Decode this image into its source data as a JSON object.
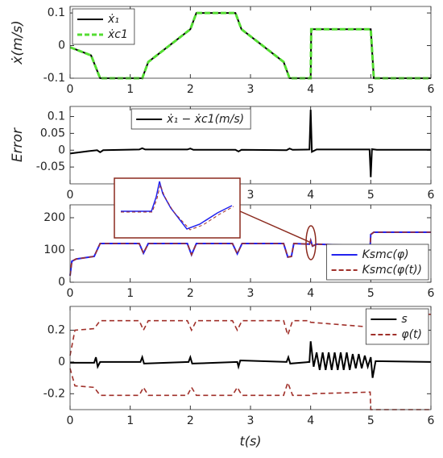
{
  "chart_data": [
    {
      "type": "line",
      "ylabel": "ẋ(m/s)",
      "legend": "upper left",
      "x": [
        0,
        0.35,
        0.5,
        1.2,
        1.3,
        2.0,
        2.1,
        2.75,
        2.85,
        3.55,
        3.65,
        4.0,
        4.01,
        5.0,
        5.05,
        6
      ],
      "series": [
        {
          "name": "ẋ₁",
          "color": "#000000",
          "dash": false,
          "values": [
            -0.005,
            -0.03,
            -0.1,
            -0.1,
            -0.05,
            0.05,
            0.1,
            0.1,
            0.05,
            -0.05,
            -0.1,
            -0.1,
            0.05,
            0.05,
            -0.1,
            -0.1
          ]
        },
        {
          "name": "ẋc1",
          "color": "#55dd33",
          "dash": true,
          "values": [
            -0.005,
            -0.03,
            -0.1,
            -0.1,
            -0.05,
            0.05,
            0.1,
            0.1,
            0.05,
            -0.05,
            -0.1,
            -0.1,
            0.05,
            0.05,
            -0.1,
            -0.1
          ]
        }
      ],
      "xlim": [
        0,
        6
      ],
      "xticks": [
        0,
        1,
        2,
        3,
        4,
        5,
        6
      ],
      "ylim": [
        -0.1,
        0.12
      ],
      "yticks": [
        -0.1,
        0,
        0.1
      ]
    },
    {
      "type": "line",
      "ylabel": "Error",
      "legend": "upper center",
      "x": [
        0,
        0.3,
        0.45,
        0.5,
        0.55,
        1.15,
        1.2,
        1.25,
        1.95,
        2.0,
        2.05,
        2.75,
        2.8,
        2.85,
        3.6,
        3.65,
        3.7,
        3.98,
        4.0,
        4.02,
        4.1,
        4.98,
        5.0,
        5.02,
        5.1,
        6
      ],
      "series": [
        {
          "name": "ẋ₁ − ẋc1(m/s)",
          "color": "#000000",
          "dash": false,
          "values": [
            -0.01,
            -0.003,
            0,
            -0.006,
            0,
            0.002,
            0.006,
            0.002,
            0.002,
            0.005,
            0.001,
            0.001,
            -0.004,
            0.001,
            0,
            0.005,
            0.001,
            0.002,
            0.12,
            -0.005,
            0.002,
            0.002,
            -0.08,
            0.003,
            0.001,
            0.001
          ]
        }
      ],
      "xlim": [
        0,
        6
      ],
      "xticks": [
        0,
        1,
        2,
        3,
        4,
        5,
        6
      ],
      "ylim": [
        -0.1,
        0.13
      ],
      "yticks": [
        -0.05,
        0,
        0.05,
        0.1
      ]
    },
    {
      "type": "line",
      "legend": "lower right",
      "x": [
        0,
        0.03,
        0.1,
        0.4,
        0.5,
        1.15,
        1.22,
        1.3,
        1.95,
        2.02,
        2.1,
        2.7,
        2.78,
        2.86,
        3.55,
        3.62,
        3.68,
        3.72,
        3.98,
        4.0,
        4.03,
        4.1,
        4.99,
        5.0,
        5.05,
        6
      ],
      "series": [
        {
          "name": "Ksmc(φ)",
          "color": "#2222ee",
          "dash": false,
          "values": [
            20,
            65,
            72,
            80,
            120,
            120,
            90,
            120,
            120,
            85,
            120,
            120,
            88,
            120,
            120,
            78,
            80,
            120,
            118,
            130,
            112,
            118,
            112,
            148,
            155,
            155
          ]
        },
        {
          "name": "Ksmc(φ(t))",
          "color": "#a0302a",
          "dash": true,
          "values": [
            20,
            65,
            72,
            80,
            120,
            120,
            90,
            120,
            120,
            85,
            120,
            120,
            88,
            120,
            120,
            78,
            80,
            120,
            118,
            130,
            112,
            118,
            112,
            148,
            155,
            155
          ]
        }
      ],
      "xlim": [
        0,
        6
      ],
      "xticks": [
        0,
        1,
        2,
        3,
        4,
        5,
        6
      ],
      "ylim": [
        0,
        240
      ],
      "yticks": [
        0,
        100,
        200
      ]
    },
    {
      "type": "line",
      "xlabel": "t(s)",
      "legend": "upper right",
      "series": [
        {
          "name": "s",
          "color": "#000000",
          "dash": false,
          "x": [
            0,
            0.4,
            0.43,
            0.46,
            0.5,
            1.17,
            1.2,
            1.23,
            1.97,
            2.0,
            2.03,
            2.78,
            2.8,
            2.83,
            3.6,
            3.63,
            3.66,
            3.98,
            4.0,
            4.05,
            4.1,
            4.15,
            4.2,
            4.25,
            4.3,
            4.35,
            4.4,
            4.45,
            4.5,
            4.55,
            4.6,
            4.65,
            4.7,
            4.75,
            4.8,
            4.85,
            4.9,
            4.95,
            5.0,
            5.03,
            5.08,
            6
          ],
          "values": [
            -0.005,
            -0.005,
            0.03,
            -0.03,
            0,
            0,
            0.03,
            -0.01,
            0,
            0.03,
            -0.01,
            0,
            -0.03,
            0.01,
            0,
            0.03,
            -0.01,
            0,
            0.13,
            -0.03,
            0.06,
            -0.05,
            0.06,
            -0.05,
            0.06,
            -0.05,
            0.06,
            -0.05,
            0.06,
            -0.05,
            0.06,
            -0.05,
            0.05,
            -0.04,
            0.05,
            -0.04,
            0.04,
            -0.03,
            0.03,
            -0.1,
            0.005,
            0
          ]
        },
        {
          "name": "φ(t)",
          "color": "#a0302a",
          "dash": true,
          "x": [
            0,
            0.08,
            0.4,
            0.5,
            1.15,
            1.22,
            1.3,
            1.95,
            2.02,
            2.1,
            2.7,
            2.78,
            2.86,
            3.55,
            3.62,
            3.7,
            3.98,
            4.0,
            4.99,
            5.0,
            6
          ],
          "values": [
            0.04,
            0.2,
            0.21,
            0.26,
            0.26,
            0.2,
            0.26,
            0.26,
            0.2,
            0.26,
            0.26,
            0.2,
            0.26,
            0.26,
            0.17,
            0.26,
            0.26,
            0.25,
            0.22,
            0.3,
            0.3
          ]
        },
        {
          "color": "#a0302a",
          "dash": true,
          "x": [
            0,
            0.08,
            0.4,
            0.5,
            1.15,
            1.22,
            1.3,
            1.95,
            2.02,
            2.1,
            2.7,
            2.78,
            2.86,
            3.55,
            3.62,
            3.7,
            3.98,
            4.0,
            4.99,
            5.0,
            6
          ],
          "values": [
            -0.04,
            -0.15,
            -0.16,
            -0.21,
            -0.21,
            -0.16,
            -0.21,
            -0.21,
            -0.16,
            -0.21,
            -0.21,
            -0.16,
            -0.21,
            -0.21,
            -0.13,
            -0.21,
            -0.21,
            -0.2,
            -0.19,
            -0.3,
            -0.3
          ]
        }
      ],
      "xlim": [
        0,
        6
      ],
      "xticks": [
        0,
        1,
        2,
        3,
        4,
        5,
        6
      ],
      "ylim": [
        -0.3,
        0.35
      ],
      "yticks": [
        -0.2,
        0,
        0.2
      ]
    }
  ]
}
